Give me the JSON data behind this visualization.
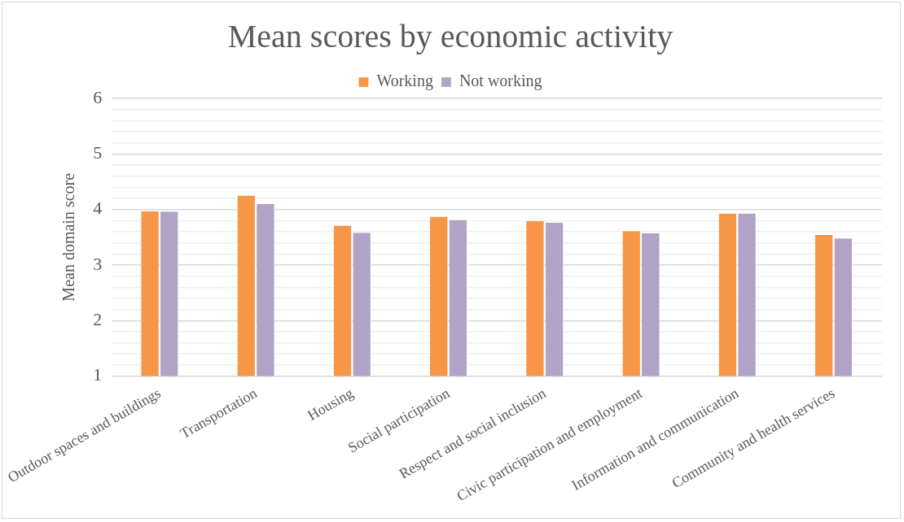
{
  "chart_data": {
    "type": "bar",
    "title": "Mean scores by economic activity",
    "ylabel": "Mean domain score",
    "categories": [
      "Outdoor spaces and buildings",
      "Transportation",
      "Housing",
      "Social participation",
      "Respect and social inclusion",
      "Civic participation and employment",
      "Information and communication",
      "Community and health services"
    ],
    "series": [
      {
        "name": "Working",
        "color": "#f79646",
        "values": [
          3.97,
          4.25,
          3.71,
          3.87,
          3.79,
          3.61,
          3.93,
          3.54
        ]
      },
      {
        "name": "Not working",
        "color": "#b1a2c8",
        "values": [
          3.96,
          4.1,
          3.58,
          3.81,
          3.76,
          3.57,
          3.93,
          3.48
        ]
      }
    ],
    "ylim": [
      1,
      6
    ],
    "yticks": [
      1,
      {
        "value": 1.2,
        "label": null
      },
      {
        "value": 1.4,
        "label": null
      },
      {
        "value": 1.6,
        "label": null
      },
      {
        "value": 1.8,
        "label": null
      },
      2,
      {
        "value": 2.2,
        "label": null
      },
      {
        "value": 2.4,
        "label": null
      },
      {
        "value": 2.6,
        "label": null
      },
      {
        "value": 2.8,
        "label": null
      },
      3,
      {
        "value": 3.2,
        "label": null
      },
      {
        "value": 3.4,
        "label": null
      },
      {
        "value": 3.6,
        "label": null
      },
      {
        "value": 3.8,
        "label": null
      },
      4,
      {
        "value": 4.2,
        "label": null
      },
      {
        "value": 4.4,
        "label": null
      },
      {
        "value": 4.6,
        "label": null
      },
      {
        "value": 4.8,
        "label": null
      },
      5,
      {
        "value": 5.2,
        "label": null
      },
      {
        "value": 5.4,
        "label": null
      },
      {
        "value": 5.6,
        "label": null
      },
      {
        "value": 5.8,
        "label": null
      },
      6
    ],
    "grid": "y",
    "legend": "top"
  }
}
